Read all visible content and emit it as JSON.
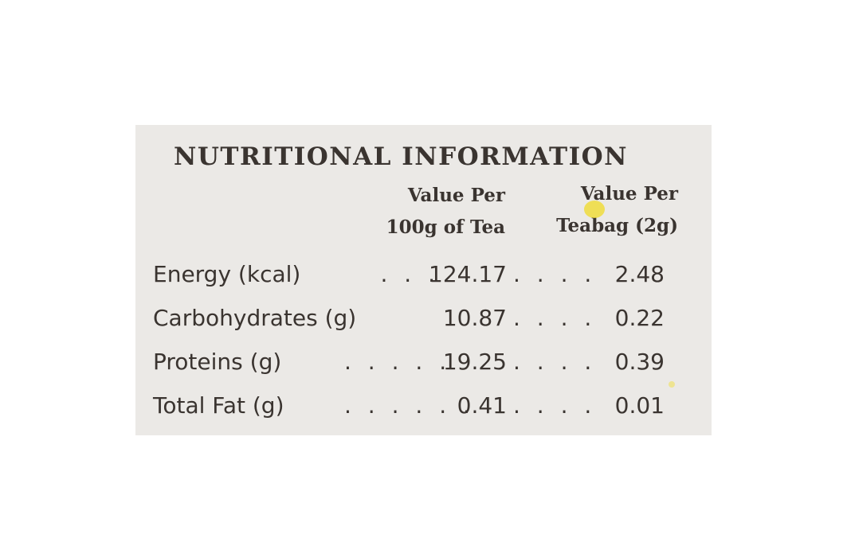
{
  "label": {
    "title": "NUTRITIONAL INFORMATION",
    "columns": [
      {
        "line1": "Value Per",
        "line2": "100g of Tea"
      },
      {
        "line1": "Value Per",
        "line2": "Teabag (2g)"
      }
    ],
    "rows": [
      {
        "name": "Energy (kcal)",
        "dots1": ". . .",
        "per_100g": "124.17",
        "dots2": ". . . .",
        "per_teabag": "2.48"
      },
      {
        "name": "Carbohydrates (g)",
        "dots1": "",
        "per_100g": "10.87",
        "dots2": ". . . .",
        "per_teabag": "0.22"
      },
      {
        "name": "Proteins (g)",
        "dots1": ". . . . .",
        "per_100g": "19.25",
        "dots2": ". . . .",
        "per_teabag": "0.39"
      },
      {
        "name": "Total Fat (g)",
        "dots1": ". . . . . .",
        "per_100g": "0.41",
        "dots2": ". . . .",
        "per_teabag": "0.01"
      }
    ]
  }
}
